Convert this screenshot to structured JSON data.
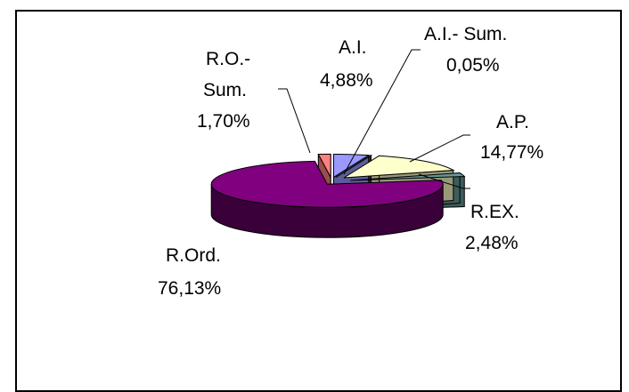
{
  "chart_data": {
    "type": "pie",
    "style": "3d-exploded",
    "title": "",
    "slices": [
      {
        "name": "A.I.",
        "value_label": "4,88%",
        "value": 4.88,
        "color": "#9999ff"
      },
      {
        "name": "A.I.- Sum.",
        "value_label": "0,05%",
        "value": 0.05,
        "color": "#993366"
      },
      {
        "name": "A.P.",
        "value_label": "14,77%",
        "value": 14.77,
        "color": "#ffffcc"
      },
      {
        "name": "R.EX.",
        "value_label": "2,48%",
        "value": 2.48,
        "color": "#669999"
      },
      {
        "name": "R.Ord.",
        "value_label": "76,13%",
        "value": 76.13,
        "color": "#800080"
      },
      {
        "name": "R.O.- Sum.",
        "value_label": "1,70%",
        "value": 1.7,
        "color": "#ff8080"
      }
    ]
  }
}
